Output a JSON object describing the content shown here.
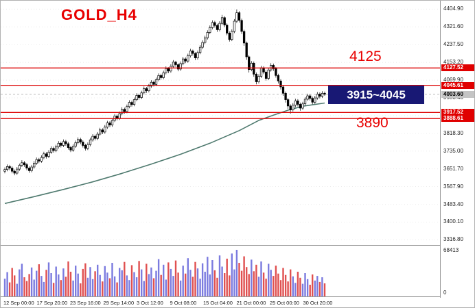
{
  "annotations": {
    "symbol": "GOLD_H4",
    "upper_level_label": "4125",
    "range_label": "3915~4045",
    "lower_level_label": "3890"
  },
  "colors": {
    "accent_red": "#dd0000",
    "navy_box": "#181874",
    "bull_fill": "#ffffff",
    "bear_fill": "#000000",
    "ma_line": "#4f7a6f",
    "vol_up": "#7b7bdf",
    "vol_down": "#e05050",
    "grid": "#ececec",
    "current_dash": "#b8b8b8"
  },
  "price_axis": {
    "ticks": [
      "4404.90",
      "4321.60",
      "4237.50",
      "4153.20",
      "4069.90",
      "3986.40",
      "3902.70",
      "3818.30",
      "3735.00",
      "3651.70",
      "3567.90",
      "3483.40",
      "3400.10",
      "3316.80"
    ],
    "badges": [
      {
        "value": "4127.52",
        "type": "red"
      },
      {
        "value": "4045.61",
        "type": "red"
      },
      {
        "value": "4003.60",
        "type": "current"
      },
      {
        "value": "3917.52",
        "type": "red"
      },
      {
        "value": "3888.61",
        "type": "red"
      }
    ]
  },
  "volume_axis": {
    "max_label": "68413",
    "min_label": "0"
  },
  "time_axis": [
    "12 Sep 00:00",
    "17 Sep 20:00",
    "23 Sep 16:00",
    "29 Sep 14:00",
    "3 Oct 12:00",
    "9 Oct 08:00",
    "15 Oct 04:00",
    "21 Oct 00:00",
    "25 Oct 00:00",
    "30 Oct 20:00"
  ],
  "chart_data": {
    "type": "candlestick",
    "title": "GOLD_H4",
    "symbol": "GOLD",
    "timeframe": "H4",
    "price_range": [
      3295,
      4445
    ],
    "current_price": 4003.6,
    "levels": [
      4127.52,
      4045.61,
      3917.52,
      3888.61
    ],
    "level_labels": [
      "4125",
      "3915~4045",
      "3890"
    ],
    "candles": [
      [
        3640,
        3658,
        3630,
        3648
      ],
      [
        3648,
        3672,
        3640,
        3662
      ],
      [
        3662,
        3670,
        3645,
        3655
      ],
      [
        3655,
        3663,
        3630,
        3640
      ],
      [
        3640,
        3648,
        3621,
        3631
      ],
      [
        3631,
        3660,
        3623,
        3650
      ],
      [
        3650,
        3676,
        3642,
        3668
      ],
      [
        3668,
        3692,
        3660,
        3680
      ],
      [
        3680,
        3688,
        3661,
        3671
      ],
      [
        3671,
        3679,
        3645,
        3655
      ],
      [
        3655,
        3663,
        3633,
        3643
      ],
      [
        3643,
        3670,
        3635,
        3660
      ],
      [
        3660,
        3688,
        3652,
        3678
      ],
      [
        3678,
        3705,
        3670,
        3695
      ],
      [
        3695,
        3703,
        3678,
        3688
      ],
      [
        3688,
        3715,
        3680,
        3705
      ],
      [
        3705,
        3732,
        3697,
        3722
      ],
      [
        3722,
        3730,
        3700,
        3710
      ],
      [
        3710,
        3740,
        3702,
        3730
      ],
      [
        3730,
        3758,
        3722,
        3748
      ],
      [
        3748,
        3756,
        3728,
        3738
      ],
      [
        3738,
        3765,
        3730,
        3755
      ],
      [
        3755,
        3782,
        3747,
        3772
      ],
      [
        3772,
        3780,
        3752,
        3762
      ],
      [
        3762,
        3790,
        3754,
        3780
      ],
      [
        3780,
        3788,
        3760,
        3770
      ],
      [
        3770,
        3778,
        3742,
        3752
      ],
      [
        3752,
        3760,
        3730,
        3740
      ],
      [
        3740,
        3768,
        3732,
        3758
      ],
      [
        3758,
        3785,
        3750,
        3775
      ],
      [
        3775,
        3800,
        3767,
        3790
      ],
      [
        3790,
        3798,
        3768,
        3778
      ],
      [
        3778,
        3786,
        3752,
        3762
      ],
      [
        3762,
        3770,
        3738,
        3748
      ],
      [
        3748,
        3776,
        3740,
        3766
      ],
      [
        3766,
        3798,
        3758,
        3788
      ],
      [
        3788,
        3815,
        3780,
        3805
      ],
      [
        3805,
        3813,
        3785,
        3795
      ],
      [
        3795,
        3825,
        3787,
        3815
      ],
      [
        3815,
        3845,
        3807,
        3835
      ],
      [
        3835,
        3843,
        3815,
        3825
      ],
      [
        3825,
        3858,
        3817,
        3848
      ],
      [
        3848,
        3878,
        3840,
        3868
      ],
      [
        3868,
        3876,
        3848,
        3858
      ],
      [
        3858,
        3890,
        3850,
        3880
      ],
      [
        3880,
        3910,
        3872,
        3900
      ],
      [
        3900,
        3908,
        3880,
        3890
      ],
      [
        3890,
        3922,
        3882,
        3912
      ],
      [
        3912,
        3942,
        3904,
        3932
      ],
      [
        3932,
        3940,
        3912,
        3922
      ],
      [
        3922,
        3955,
        3914,
        3945
      ],
      [
        3945,
        3975,
        3937,
        3965
      ],
      [
        3965,
        3973,
        3945,
        3955
      ],
      [
        3955,
        3988,
        3947,
        3978
      ],
      [
        3978,
        4008,
        3970,
        3998
      ],
      [
        3998,
        4006,
        3978,
        3988
      ],
      [
        3988,
        4020,
        3980,
        4010
      ],
      [
        4010,
        4040,
        4002,
        4030
      ],
      [
        4030,
        4038,
        4010,
        4020
      ],
      [
        4020,
        4052,
        4012,
        4042
      ],
      [
        4042,
        4070,
        4034,
        4060
      ],
      [
        4060,
        4068,
        4040,
        4050
      ],
      [
        4050,
        4082,
        4042,
        4072
      ],
      [
        4072,
        4102,
        4064,
        4092
      ],
      [
        4092,
        4100,
        4072,
        4082
      ],
      [
        4082,
        4115,
        4074,
        4105
      ],
      [
        4105,
        4135,
        4097,
        4125
      ],
      [
        4125,
        4131,
        4103,
        4113
      ],
      [
        4113,
        4145,
        4105,
        4135
      ],
      [
        4135,
        4165,
        4127,
        4155
      ],
      [
        4155,
        4161,
        4133,
        4143
      ],
      [
        4143,
        4149,
        4112,
        4122
      ],
      [
        4122,
        4158,
        4114,
        4148
      ],
      [
        4148,
        4180,
        4140,
        4170
      ],
      [
        4170,
        4178,
        4150,
        4160
      ],
      [
        4160,
        4195,
        4152,
        4185
      ],
      [
        4185,
        4218,
        4177,
        4208
      ],
      [
        4208,
        4214,
        4186,
        4196
      ],
      [
        4196,
        4202,
        4165,
        4175
      ],
      [
        4175,
        4210,
        4167,
        4200
      ],
      [
        4200,
        4235,
        4192,
        4225
      ],
      [
        4225,
        4258,
        4217,
        4248
      ],
      [
        4248,
        4280,
        4240,
        4270
      ],
      [
        4270,
        4305,
        4262,
        4295
      ],
      [
        4295,
        4328,
        4287,
        4318
      ],
      [
        4318,
        4352,
        4310,
        4342
      ],
      [
        4342,
        4350,
        4318,
        4328
      ],
      [
        4328,
        4336,
        4298,
        4308
      ],
      [
        4308,
        4348,
        4300,
        4338
      ],
      [
        4338,
        4378,
        4330,
        4365
      ],
      [
        4365,
        4372,
        4320,
        4330
      ],
      [
        4330,
        4338,
        4282,
        4292
      ],
      [
        4292,
        4300,
        4252,
        4262
      ],
      [
        4262,
        4310,
        4254,
        4300
      ],
      [
        4300,
        4358,
        4292,
        4348
      ],
      [
        4348,
        4404,
        4340,
        4388
      ],
      [
        4388,
        4396,
        4342,
        4352
      ],
      [
        4352,
        4360,
        4288,
        4300
      ],
      [
        4300,
        4308,
        4232,
        4245
      ],
      [
        4245,
        4252,
        4166,
        4180
      ],
      [
        4180,
        4188,
        4106,
        4120
      ],
      [
        4120,
        4160,
        4112,
        4150
      ],
      [
        4150,
        4158,
        4086,
        4098
      ],
      [
        4098,
        4106,
        4050,
        4062
      ],
      [
        4062,
        4098,
        4054,
        4088
      ],
      [
        4088,
        4138,
        4080,
        4128
      ],
      [
        4128,
        4136,
        4098,
        4108
      ],
      [
        4108,
        4116,
        4068,
        4078
      ],
      [
        4078,
        4128,
        4070,
        4118
      ],
      [
        4118,
        4150,
        4110,
        4140
      ],
      [
        4140,
        4148,
        4114,
        4124
      ],
      [
        4124,
        4132,
        4082,
        4092
      ],
      [
        4092,
        4100,
        4054,
        4066
      ],
      [
        4066,
        4074,
        4026,
        4038
      ],
      [
        4038,
        4046,
        3996,
        4008
      ],
      [
        4008,
        4016,
        3964,
        3978
      ],
      [
        3978,
        3986,
        3934,
        3948
      ],
      [
        3948,
        3956,
        3912,
        3930
      ],
      [
        3930,
        3962,
        3922,
        3952
      ],
      [
        3952,
        3982,
        3942,
        3972
      ],
      [
        3972,
        3980,
        3946,
        3956
      ],
      [
        3956,
        3964,
        3926,
        3938
      ],
      [
        3938,
        3968,
        3930,
        3958
      ],
      [
        3958,
        3990,
        3950,
        3980
      ],
      [
        3980,
        4006,
        3972,
        3996
      ],
      [
        3996,
        4004,
        3974,
        3984
      ],
      [
        3984,
        3992,
        3956,
        3966
      ],
      [
        3966,
        3996,
        3958,
        3986
      ],
      [
        3986,
        4014,
        3978,
        4004
      ],
      [
        4004,
        4012,
        3984,
        3994
      ],
      [
        3994,
        4018,
        3986,
        4008
      ],
      [
        4008,
        4016,
        3996,
        4003.6
      ]
    ],
    "ma_anchor_indices": [
      0,
      12,
      24,
      36,
      48,
      60,
      72,
      84,
      96,
      104,
      110,
      116,
      122,
      131
    ],
    "ma_anchor_values": [
      3488,
      3520,
      3554,
      3590,
      3630,
      3674,
      3720,
      3772,
      3832,
      3880,
      3905,
      3928,
      3947,
      3962
    ],
    "volume_max": 68413,
    "volumes_pct": [
      38,
      52,
      30,
      61,
      45,
      27,
      58,
      70,
      41,
      33,
      48,
      62,
      36,
      55,
      69,
      44,
      31,
      57,
      73,
      50,
      29,
      64,
      47,
      35,
      60,
      42,
      75,
      53,
      34,
      66,
      49,
      28,
      59,
      71,
      40,
      63,
      37,
      54,
      68,
      46,
      32,
      65,
      51,
      39,
      72,
      43,
      30,
      61,
      56,
      74,
      45,
      35,
      67,
      52,
      41,
      76,
      58,
      33,
      70,
      48,
      62,
      39,
      55,
      80,
      46,
      68,
      36,
      73,
      59,
      44,
      77,
      51,
      34,
      66,
      49,
      82,
      57,
      42,
      74,
      60,
      38,
      71,
      53,
      85,
      47,
      78,
      56,
      40,
      88,
      64,
      50,
      81,
      45,
      92,
      58,
      100,
      72,
      55,
      86,
      63,
      48,
      79,
      54,
      68,
      42,
      75,
      51,
      38,
      70,
      57,
      44,
      66,
      49,
      35,
      61,
      46,
      32,
      58,
      43,
      29,
      53,
      40,
      27,
      50,
      37,
      25,
      47,
      34,
      44,
      31,
      41,
      28
    ]
  }
}
